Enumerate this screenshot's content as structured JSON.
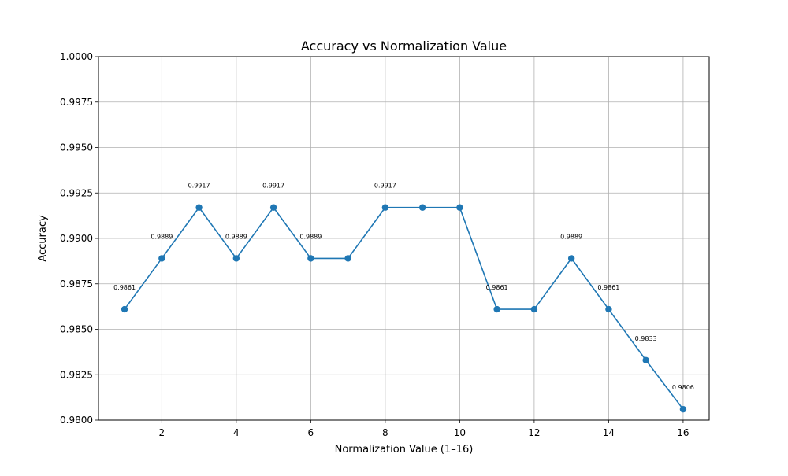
{
  "chart_data": {
    "type": "line",
    "title": "Accuracy vs Normalization Value",
    "xlabel": "Normalization Value (1–16)",
    "ylabel": "Accuracy",
    "xlim": [
      0.3,
      16.7
    ],
    "ylim": [
      0.98,
      1.0
    ],
    "x_ticks": [
      2,
      4,
      6,
      8,
      10,
      12,
      14,
      16
    ],
    "y_ticks": [
      0.98,
      0.9825,
      0.985,
      0.9875,
      0.99,
      0.9925,
      0.995,
      0.9975,
      1.0
    ],
    "y_tick_labels": [
      "0.9800",
      "0.9825",
      "0.9850",
      "0.9875",
      "0.9900",
      "0.9925",
      "0.9950",
      "0.9975",
      "1.0000"
    ],
    "grid": true,
    "marker": "circle",
    "series": [
      {
        "color": "#1f77b4",
        "x": [
          1,
          2,
          3,
          4,
          5,
          6,
          7,
          8,
          9,
          10,
          11,
          12,
          13,
          14,
          15,
          16
        ],
        "y": [
          0.9861,
          0.9889,
          0.9917,
          0.9889,
          0.9917,
          0.9889,
          0.9889,
          0.9917,
          0.9917,
          0.9917,
          0.9861,
          0.9861,
          0.9889,
          0.9861,
          0.9833,
          0.9806
        ]
      }
    ],
    "annotations": [
      {
        "x": 1,
        "y": 0.9861,
        "text": "0.9861"
      },
      {
        "x": 2,
        "y": 0.9889,
        "text": "0.9889"
      },
      {
        "x": 3,
        "y": 0.9917,
        "text": "0.9917"
      },
      {
        "x": 4,
        "y": 0.9889,
        "text": "0.9889"
      },
      {
        "x": 5,
        "y": 0.9917,
        "text": "0.9917"
      },
      {
        "x": 6,
        "y": 0.9889,
        "text": "0.9889"
      },
      {
        "x": 8,
        "y": 0.9917,
        "text": "0.9917"
      },
      {
        "x": 11,
        "y": 0.9861,
        "text": "0.9861"
      },
      {
        "x": 13,
        "y": 0.9889,
        "text": "0.9889"
      },
      {
        "x": 14,
        "y": 0.9861,
        "text": "0.9861"
      },
      {
        "x": 15,
        "y": 0.9833,
        "text": "0.9833"
      },
      {
        "x": 16,
        "y": 0.9806,
        "text": "0.9806"
      }
    ]
  }
}
